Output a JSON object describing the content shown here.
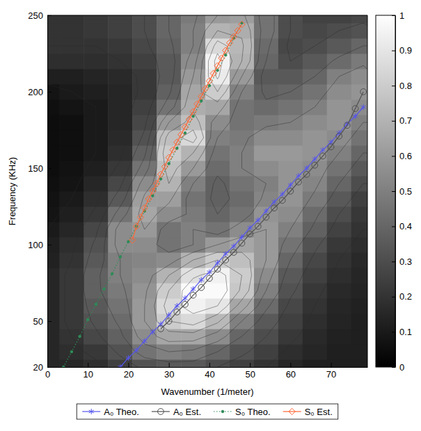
{
  "chart_data": {
    "type": "contour",
    "xlabel": "Wavenumber (1/meter)",
    "ylabel": "Frequency (KHz)",
    "xlim": [
      0,
      79
    ],
    "ylim": [
      20,
      250
    ],
    "xticks": [
      0,
      10,
      20,
      30,
      40,
      50,
      60,
      70
    ],
    "yticks": [
      20,
      50,
      100,
      150,
      200,
      250
    ],
    "grid": false,
    "legend": "bottom",
    "heatmap": {
      "x": [
        0,
        6,
        12,
        18,
        24,
        30,
        36,
        42,
        48,
        54,
        60,
        66,
        72,
        78
      ],
      "y": [
        20,
        30,
        40,
        50,
        60,
        70,
        80,
        90,
        100,
        110,
        120,
        130,
        140,
        150,
        160,
        170,
        180,
        190,
        200,
        210,
        220,
        230,
        240,
        250
      ],
      "z": [
        [
          0.15,
          0.15,
          0.18,
          0.25,
          0.32,
          0.35,
          0.35,
          0.3,
          0.25,
          0.2,
          0.15,
          0.12,
          0.12,
          0.12
        ],
        [
          0.15,
          0.18,
          0.22,
          0.32,
          0.45,
          0.5,
          0.48,
          0.4,
          0.32,
          0.25,
          0.18,
          0.15,
          0.12,
          0.12
        ],
        [
          0.15,
          0.2,
          0.28,
          0.38,
          0.55,
          0.65,
          0.65,
          0.55,
          0.4,
          0.3,
          0.22,
          0.16,
          0.13,
          0.12
        ],
        [
          0.15,
          0.22,
          0.32,
          0.42,
          0.6,
          0.8,
          0.85,
          0.72,
          0.5,
          0.35,
          0.25,
          0.18,
          0.14,
          0.12
        ],
        [
          0.15,
          0.22,
          0.35,
          0.45,
          0.6,
          0.85,
          0.95,
          0.9,
          0.65,
          0.42,
          0.28,
          0.2,
          0.15,
          0.13
        ],
        [
          0.15,
          0.22,
          0.38,
          0.48,
          0.58,
          0.8,
          0.98,
          0.98,
          0.78,
          0.5,
          0.32,
          0.22,
          0.16,
          0.14
        ],
        [
          0.15,
          0.22,
          0.38,
          0.5,
          0.55,
          0.7,
          0.88,
          0.95,
          0.8,
          0.55,
          0.35,
          0.25,
          0.18,
          0.15
        ],
        [
          0.13,
          0.2,
          0.35,
          0.5,
          0.52,
          0.55,
          0.7,
          0.8,
          0.75,
          0.6,
          0.4,
          0.28,
          0.2,
          0.16
        ],
        [
          0.12,
          0.18,
          0.32,
          0.55,
          0.55,
          0.45,
          0.5,
          0.6,
          0.65,
          0.6,
          0.45,
          0.32,
          0.22,
          0.18
        ],
        [
          0.1,
          0.15,
          0.28,
          0.55,
          0.6,
          0.45,
          0.5,
          0.45,
          0.55,
          0.6,
          0.5,
          0.38,
          0.26,
          0.2
        ],
        [
          0.08,
          0.12,
          0.22,
          0.45,
          0.65,
          0.55,
          0.48,
          0.4,
          0.45,
          0.58,
          0.55,
          0.42,
          0.3,
          0.22
        ],
        [
          0.07,
          0.1,
          0.18,
          0.35,
          0.62,
          0.62,
          0.45,
          0.38,
          0.42,
          0.52,
          0.58,
          0.48,
          0.35,
          0.25
        ],
        [
          0.06,
          0.08,
          0.15,
          0.28,
          0.55,
          0.7,
          0.5,
          0.38,
          0.45,
          0.5,
          0.58,
          0.52,
          0.4,
          0.3
        ],
        [
          0.05,
          0.07,
          0.12,
          0.22,
          0.45,
          0.75,
          0.6,
          0.42,
          0.5,
          0.55,
          0.58,
          0.55,
          0.45,
          0.35
        ],
        [
          0.05,
          0.06,
          0.1,
          0.18,
          0.38,
          0.8,
          0.7,
          0.45,
          0.5,
          0.6,
          0.6,
          0.58,
          0.5,
          0.4
        ],
        [
          0.05,
          0.06,
          0.1,
          0.16,
          0.32,
          0.75,
          0.85,
          0.5,
          0.48,
          0.55,
          0.55,
          0.58,
          0.55,
          0.45
        ],
        [
          0.05,
          0.06,
          0.1,
          0.15,
          0.28,
          0.6,
          0.75,
          0.55,
          0.45,
          0.48,
          0.5,
          0.55,
          0.58,
          0.5
        ],
        [
          0.06,
          0.08,
          0.1,
          0.15,
          0.25,
          0.45,
          0.68,
          0.65,
          0.45,
          0.42,
          0.45,
          0.5,
          0.58,
          0.55
        ],
        [
          0.08,
          0.1,
          0.12,
          0.15,
          0.22,
          0.38,
          0.65,
          0.8,
          0.5,
          0.38,
          0.4,
          0.45,
          0.55,
          0.58
        ],
        [
          0.12,
          0.12,
          0.14,
          0.16,
          0.22,
          0.35,
          0.6,
          0.92,
          0.6,
          0.35,
          0.35,
          0.4,
          0.5,
          0.55
        ],
        [
          0.18,
          0.18,
          0.18,
          0.2,
          0.25,
          0.35,
          0.55,
          0.95,
          0.7,
          0.4,
          0.3,
          0.35,
          0.42,
          0.48
        ],
        [
          0.2,
          0.2,
          0.2,
          0.22,
          0.28,
          0.38,
          0.5,
          0.85,
          0.72,
          0.42,
          0.28,
          0.3,
          0.35,
          0.4
        ],
        [
          0.2,
          0.2,
          0.22,
          0.25,
          0.3,
          0.4,
          0.5,
          0.7,
          0.68,
          0.45,
          0.3,
          0.28,
          0.3,
          0.32
        ],
        [
          0.2,
          0.2,
          0.22,
          0.25,
          0.3,
          0.4,
          0.48,
          0.6,
          0.62,
          0.45,
          0.3,
          0.26,
          0.26,
          0.28
        ]
      ]
    },
    "colorbar": {
      "range": [
        0,
        1
      ],
      "ticks": [
        0,
        0.1,
        0.2,
        0.3,
        0.4,
        0.5,
        0.6,
        0.7,
        0.8,
        0.9,
        1
      ]
    },
    "series": [
      {
        "name": "A₀ Theo.",
        "color": "#5555ee",
        "marker": "asterisk",
        "line_style": "solid",
        "x": [
          18,
          20,
          22,
          24,
          26,
          28,
          30,
          32,
          34,
          36,
          38,
          40,
          42,
          44,
          46,
          48,
          50,
          52,
          54,
          56,
          58,
          60,
          62,
          64,
          66,
          68,
          70,
          72,
          74,
          76,
          78
        ],
        "values": [
          20,
          26,
          31,
          37,
          43,
          48,
          54,
          60,
          65,
          71,
          77,
          82,
          88,
          94,
          99,
          105,
          111,
          116,
          122,
          128,
          133,
          139,
          145,
          150,
          156,
          162,
          167,
          173,
          179,
          184,
          190
        ]
      },
      {
        "name": "A₀ Est.",
        "color": "#505050",
        "marker": "circle",
        "line_style": "solid",
        "x": [
          28,
          30,
          32,
          34,
          36,
          38,
          40,
          42,
          44,
          46,
          48,
          50,
          52,
          54,
          56,
          58,
          60,
          62,
          64,
          66,
          68,
          70,
          72,
          74,
          76,
          78
        ],
        "values": [
          45,
          50,
          56,
          61,
          67,
          72,
          78,
          84,
          90,
          95,
          101,
          107,
          112,
          118,
          124,
          129,
          135,
          141,
          146,
          152,
          158,
          164,
          171,
          178,
          189,
          200
        ]
      },
      {
        "name": "S₀ Theo.",
        "color": "#2e8b57",
        "marker": "dot",
        "line_style": "dotted",
        "x": [
          4,
          6,
          8,
          10,
          12,
          14,
          16,
          18,
          20,
          22,
          24,
          26,
          28,
          30,
          32,
          34,
          36,
          38,
          40,
          42,
          44,
          46,
          48
        ],
        "values": [
          20,
          30,
          40,
          51,
          61,
          71,
          81,
          92,
          102,
          112,
          122,
          132,
          143,
          153,
          163,
          173,
          184,
          194,
          204,
          214,
          224,
          235,
          245
        ]
      },
      {
        "name": "S₀ Est.",
        "color": "#ff6633",
        "marker": "diamond",
        "line_style": "solid",
        "x": [
          21,
          22,
          23,
          24,
          25,
          26,
          27,
          28,
          29,
          30,
          31,
          32,
          33,
          34,
          35,
          36,
          37,
          38,
          39,
          40,
          41,
          42,
          43,
          44,
          45,
          46,
          47,
          48
        ],
        "values": [
          103,
          112,
          118,
          124,
          130,
          135,
          140,
          146,
          151,
          157,
          162,
          167,
          172,
          177,
          182,
          187,
          192,
          197,
          202,
          207,
          212,
          217,
          222,
          227,
          232,
          236,
          240,
          244
        ]
      }
    ]
  }
}
